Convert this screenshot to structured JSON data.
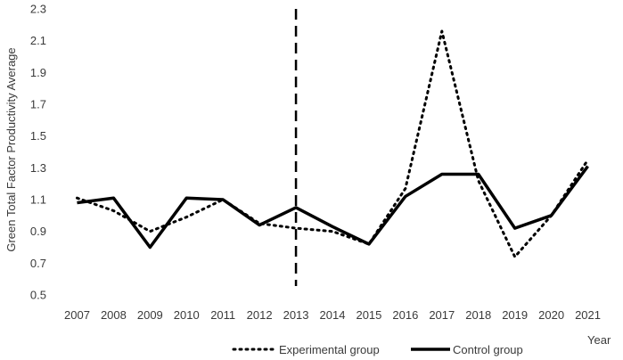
{
  "chart_data": {
    "type": "line",
    "title": "",
    "xlabel": "Year",
    "ylabel": "Green Total Factor Productivity Average",
    "categories": [
      "2007",
      "2008",
      "2009",
      "2010",
      "2011",
      "2012",
      "2013",
      "2014",
      "2015",
      "2016",
      "2017",
      "2018",
      "2019",
      "2020",
      "2021"
    ],
    "ylim": [
      0.5,
      2.3
    ],
    "yticks": [
      "0.5",
      "0.7",
      "0.9",
      "1.1",
      "1.3",
      "1.5",
      "1.7",
      "1.9",
      "2.1",
      "2.3"
    ],
    "grid": false,
    "legend_position": "bottom",
    "reference_line": {
      "x": "2013",
      "style": "dashed"
    },
    "series": [
      {
        "name": "Experimental group",
        "style": "dotted",
        "color": "#000000",
        "values": [
          1.11,
          1.03,
          0.9,
          0.99,
          1.1,
          0.95,
          0.92,
          0.9,
          0.82,
          1.17,
          2.16,
          1.22,
          0.74,
          1.0,
          1.35
        ]
      },
      {
        "name": "Control group",
        "style": "solid",
        "color": "#000000",
        "values": [
          1.08,
          1.11,
          0.8,
          1.11,
          1.1,
          0.94,
          1.05,
          0.93,
          0.82,
          1.12,
          1.26,
          1.26,
          0.92,
          1.0,
          1.31
        ]
      }
    ]
  }
}
